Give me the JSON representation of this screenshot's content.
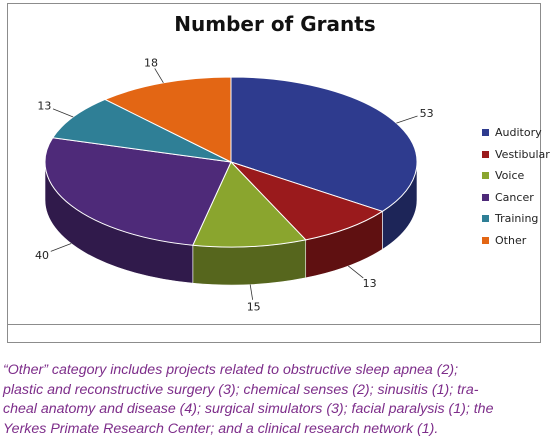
{
  "chart_data": {
    "type": "pie",
    "title": "Number of Grants",
    "categories": [
      "Auditory",
      "Vestibular",
      "Voice",
      "Cancer",
      "Training",
      "Other"
    ],
    "values": [
      53,
      13,
      15,
      40,
      13,
      18
    ],
    "colors": [
      "#2e3b8e",
      "#9a1a1c",
      "#8aa52e",
      "#4e2a79",
      "#2f7f96",
      "#e36614"
    ],
    "legend_position": "right",
    "style": "3d"
  },
  "caption_lines": [
    "“Other” category includes projects related to obstructive sleep apnea (2);",
    "plastic and reconstructive surgery (3); chemical senses (2); sinusitis (1); tra-",
    "cheal anatomy and disease (4); surgical simulators (3); facial paralysis (1); the",
    "Yerkes Primate Research Center; and a clinical research network (1)."
  ]
}
